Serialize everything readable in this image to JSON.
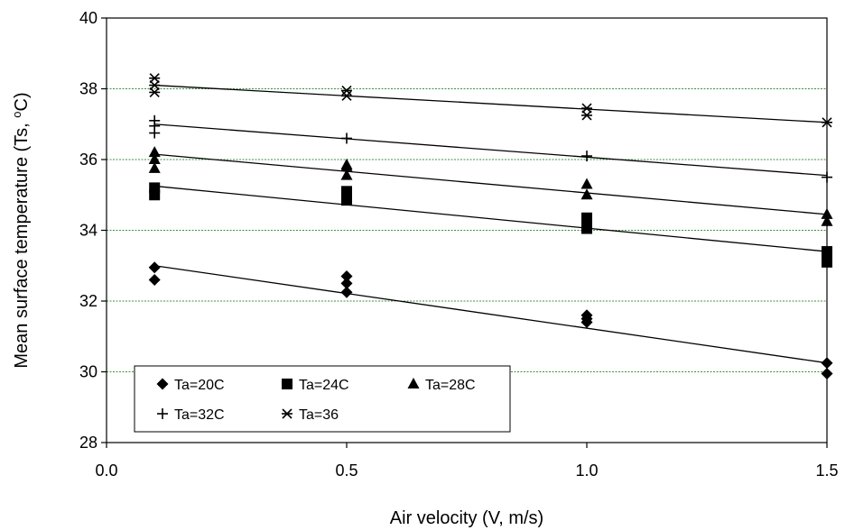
{
  "chart_data": {
    "type": "scatter",
    "title": "",
    "xlabel": "Air velocity (V, m/s)",
    "ylabel_parts": [
      "Mean surface temperature (Ts, ",
      "o",
      "C)"
    ],
    "xlim": [
      0.0,
      1.5
    ],
    "ylim": [
      28,
      40
    ],
    "x_ticks": [
      "0.0",
      "0.5",
      "1.0",
      "1.5"
    ],
    "y_ticks": [
      "28",
      "30",
      "32",
      "34",
      "36",
      "38",
      "40"
    ],
    "grid": "horizontal",
    "legend_position": "lower-left",
    "series": [
      {
        "name": "Ta=20C",
        "marker": "diamond",
        "x": [
          0.1,
          0.1,
          0.5,
          0.5,
          0.5,
          1.0,
          1.0,
          1.0,
          1.5,
          1.5
        ],
        "y": [
          32.95,
          32.6,
          32.7,
          32.5,
          32.25,
          31.6,
          31.5,
          31.4,
          30.25,
          29.95
        ],
        "trend": [
          [
            0.1,
            33.0
          ],
          [
            1.5,
            30.25
          ]
        ]
      },
      {
        "name": "Ta=24C",
        "marker": "square",
        "x": [
          0.1,
          0.1,
          0.5,
          0.5,
          0.5,
          1.0,
          1.0,
          1.0,
          1.5,
          1.5,
          1.5
        ],
        "y": [
          35.2,
          35.0,
          35.1,
          34.95,
          34.85,
          34.35,
          34.2,
          34.05,
          33.4,
          33.25,
          33.1
        ],
        "trend": [
          [
            0.1,
            35.25
          ],
          [
            1.5,
            33.4
          ]
        ]
      },
      {
        "name": "Ta=28C",
        "marker": "triangle",
        "x": [
          0.1,
          0.1,
          0.1,
          0.5,
          0.5,
          0.5,
          1.0,
          1.0,
          1.5,
          1.5
        ],
        "y": [
          36.2,
          36.0,
          35.75,
          35.85,
          35.8,
          35.55,
          35.3,
          35.0,
          34.45,
          34.25
        ],
        "trend": [
          [
            0.1,
            36.15
          ],
          [
            1.5,
            34.45
          ]
        ]
      },
      {
        "name": "Ta=32C",
        "marker": "plus",
        "x": [
          0.1,
          0.1,
          0.1,
          0.5,
          1.0,
          1.5
        ],
        "y": [
          37.1,
          36.95,
          36.75,
          36.6,
          36.1,
          35.5
        ],
        "trend": [
          [
            0.1,
            37.0
          ],
          [
            1.5,
            35.55
          ]
        ]
      },
      {
        "name": "Ta=36",
        "marker": "asterisk",
        "x": [
          0.1,
          0.1,
          0.1,
          0.5,
          0.5,
          1.0,
          1.0,
          1.5
        ],
        "y": [
          38.3,
          38.1,
          37.9,
          37.95,
          37.8,
          37.45,
          37.25,
          37.05
        ],
        "trend": [
          [
            0.1,
            38.1
          ],
          [
            1.5,
            37.05
          ]
        ]
      }
    ]
  }
}
